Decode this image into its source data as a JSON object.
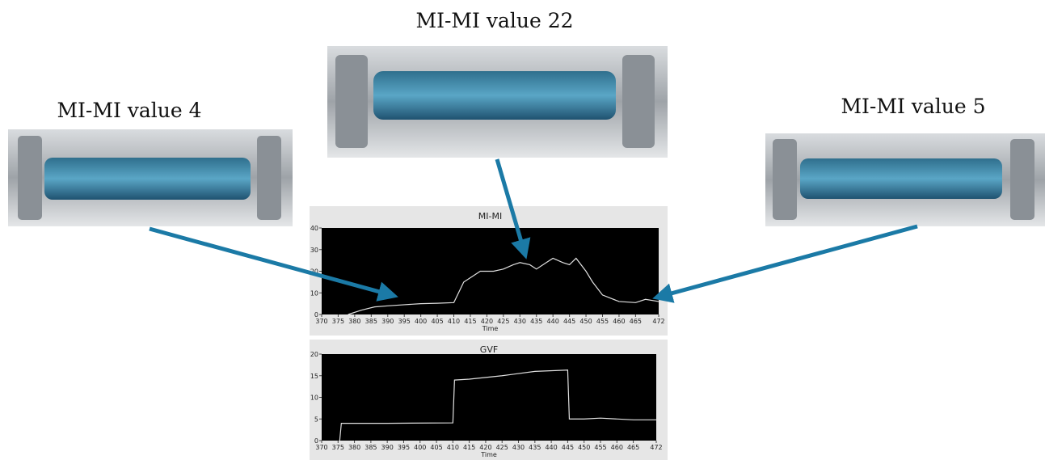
{
  "labels": [
    "MI-MI value 4",
    "MI-MI value 22",
    "MI-MI value 5"
  ],
  "chart_data": [
    {
      "type": "line",
      "title": "MI-MI",
      "x_label": "Time",
      "x": [
        378,
        382,
        386,
        390,
        395,
        400,
        405,
        410,
        413,
        416,
        418,
        422,
        425,
        428,
        430,
        433,
        435,
        438,
        440,
        443,
        445,
        447,
        450,
        452,
        455,
        460,
        465,
        468,
        472
      ],
      "series": [
        {
          "name": "MI-MI",
          "color": "#e0e0e0",
          "values": [
            0,
            2,
            3.5,
            4,
            4.5,
            5,
            5.2,
            5.5,
            15,
            18,
            20,
            20,
            21,
            23,
            24,
            23,
            21,
            24,
            26,
            24,
            23,
            26,
            20,
            15,
            9,
            6,
            5.5,
            7,
            6
          ]
        }
      ],
      "xlim": [
        370,
        472
      ],
      "xticks": [
        370,
        375,
        380,
        385,
        390,
        395,
        400,
        405,
        410,
        415,
        420,
        425,
        430,
        435,
        440,
        445,
        450,
        455,
        460,
        465,
        472
      ],
      "ylim": [
        0,
        40
      ],
      "yticks": [
        0,
        10,
        20,
        30,
        40
      ]
    },
    {
      "type": "line",
      "title": "GVF",
      "x_label": "Time",
      "x": [
        375.5,
        376,
        390,
        410,
        410.5,
        415,
        425,
        435,
        445,
        445.5,
        450,
        455,
        465,
        472
      ],
      "series": [
        {
          "name": "GVF",
          "color": "#e0e0e0",
          "values": [
            0,
            4,
            4,
            4.1,
            14,
            14.2,
            15,
            16,
            16.3,
            5,
            5,
            5.2,
            4.8,
            4.8
          ]
        }
      ],
      "xlim": [
        370,
        472
      ],
      "xticks": [
        370,
        375,
        380,
        385,
        390,
        395,
        400,
        405,
        410,
        415,
        420,
        425,
        430,
        435,
        440,
        445,
        450,
        455,
        460,
        465,
        472
      ],
      "ylim": [
        0,
        20
      ],
      "yticks": [
        0,
        5,
        10,
        15,
        20
      ]
    }
  ]
}
